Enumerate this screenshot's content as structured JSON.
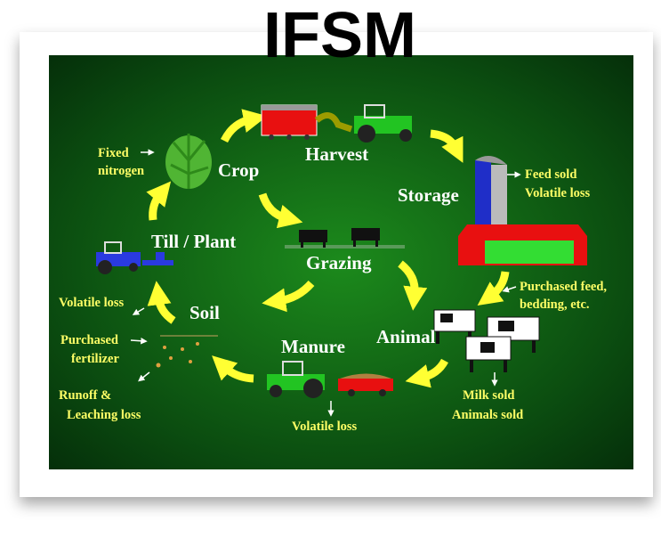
{
  "title": "IFSM",
  "nodes": [
    {
      "label": "Crop"
    },
    {
      "label": "Harvest"
    },
    {
      "label": "Storage"
    },
    {
      "label": "Grazing"
    },
    {
      "label": "Till / Plant"
    },
    {
      "label": "Soil"
    },
    {
      "label": "Manure"
    },
    {
      "label": "Animal"
    }
  ],
  "notes": [
    {
      "lines": [
        "Fixed",
        "nitrogen"
      ]
    },
    {
      "lines": [
        "Feed sold",
        "Volatile loss"
      ]
    },
    {
      "lines": [
        "Purchased feed,",
        "bedding, etc."
      ]
    },
    {
      "lines": [
        "Volatile loss"
      ]
    },
    {
      "lines": [
        "Purchased",
        "fertilizer"
      ]
    },
    {
      "lines": [
        "Runoff &",
        "Leaching loss"
      ]
    },
    {
      "lines": [
        "Volatile loss"
      ]
    },
    {
      "lines": [
        "Milk sold",
        "Animals sold"
      ]
    }
  ]
}
